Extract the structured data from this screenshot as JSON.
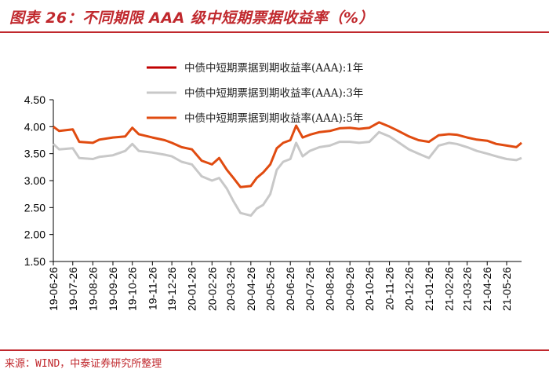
{
  "header": {
    "title": "图表 26：不同期限 AAA 级中短期票据收益率（%）"
  },
  "footer": {
    "source": "来源：WIND，中泰证券研究所整理"
  },
  "colors": {
    "accent": "#c0282d",
    "series_1y": "#c00000",
    "series_3y": "#c8c8c8",
    "series_5y": "#e04b10"
  },
  "chart_data": {
    "type": "line",
    "title": "",
    "xlabel": "",
    "ylabel": "",
    "ylim": [
      1.5,
      4.5
    ],
    "yticks": [
      "4.50",
      "4.00",
      "3.50",
      "3.00",
      "2.50",
      "2.00",
      "1.50"
    ],
    "x_start": "2019-06-26",
    "x_end": "2021-06-18",
    "xticks": [
      "19-06-26",
      "19-07-26",
      "19-08-26",
      "19-09-26",
      "19-10-26",
      "19-11-26",
      "19-12-26",
      "20-01-26",
      "20-02-26",
      "20-03-26",
      "20-04-26",
      "20-05-26",
      "20-06-26",
      "20-07-26",
      "20-08-26",
      "20-09-26",
      "20-10-26",
      "20-11-26",
      "20-12-26",
      "21-01-26",
      "21-02-26",
      "21-03-26",
      "21-04-26",
      "21-05-26"
    ],
    "legend_position": "top-center",
    "grid": false,
    "series": [
      {
        "name": "中债中短期票据到期收益率(AAA):1年",
        "key": "series_1y",
        "values": []
      },
      {
        "name": "中债中短期票据到期收益率(AAA):3年",
        "key": "series_3y",
        "points": [
          [
            "2019-06-26",
            3.68
          ],
          [
            "2019-07-05",
            3.58
          ],
          [
            "2019-07-26",
            3.6
          ],
          [
            "2019-08-05",
            3.42
          ],
          [
            "2019-08-26",
            3.4
          ],
          [
            "2019-09-05",
            3.44
          ],
          [
            "2019-09-26",
            3.47
          ],
          [
            "2019-10-15",
            3.55
          ],
          [
            "2019-10-26",
            3.68
          ],
          [
            "2019-11-05",
            3.55
          ],
          [
            "2019-11-26",
            3.52
          ],
          [
            "2019-12-15",
            3.48
          ],
          [
            "2019-12-26",
            3.45
          ],
          [
            "2020-01-10",
            3.35
          ],
          [
            "2020-01-26",
            3.3
          ],
          [
            "2020-02-10",
            3.08
          ],
          [
            "2020-02-26",
            3.0
          ],
          [
            "2020-03-08",
            3.05
          ],
          [
            "2020-03-20",
            2.85
          ],
          [
            "2020-03-30",
            2.62
          ],
          [
            "2020-04-10",
            2.4
          ],
          [
            "2020-04-26",
            2.35
          ],
          [
            "2020-05-05",
            2.48
          ],
          [
            "2020-05-15",
            2.55
          ],
          [
            "2020-05-26",
            2.75
          ],
          [
            "2020-06-05",
            3.2
          ],
          [
            "2020-06-15",
            3.35
          ],
          [
            "2020-06-26",
            3.4
          ],
          [
            "2020-07-05",
            3.7
          ],
          [
            "2020-07-15",
            3.45
          ],
          [
            "2020-07-26",
            3.55
          ],
          [
            "2020-08-10",
            3.62
          ],
          [
            "2020-08-26",
            3.65
          ],
          [
            "2020-09-10",
            3.72
          ],
          [
            "2020-09-26",
            3.72
          ],
          [
            "2020-10-10",
            3.7
          ],
          [
            "2020-10-26",
            3.72
          ],
          [
            "2020-11-10",
            3.9
          ],
          [
            "2020-11-26",
            3.82
          ],
          [
            "2020-12-05",
            3.75
          ],
          [
            "2020-12-26",
            3.58
          ],
          [
            "2021-01-10",
            3.5
          ],
          [
            "2021-01-26",
            3.42
          ],
          [
            "2021-02-10",
            3.65
          ],
          [
            "2021-02-26",
            3.7
          ],
          [
            "2021-03-10",
            3.68
          ],
          [
            "2021-03-26",
            3.62
          ],
          [
            "2021-04-10",
            3.55
          ],
          [
            "2021-04-26",
            3.5
          ],
          [
            "2021-05-10",
            3.45
          ],
          [
            "2021-05-26",
            3.4
          ],
          [
            "2021-06-10",
            3.38
          ],
          [
            "2021-06-18",
            3.42
          ]
        ]
      },
      {
        "name": "中债中短期票据到期收益率(AAA):5年",
        "key": "series_5y",
        "points": [
          [
            "2019-06-26",
            4.0
          ],
          [
            "2019-07-05",
            3.92
          ],
          [
            "2019-07-26",
            3.95
          ],
          [
            "2019-08-05",
            3.72
          ],
          [
            "2019-08-26",
            3.7
          ],
          [
            "2019-09-05",
            3.76
          ],
          [
            "2019-09-26",
            3.8
          ],
          [
            "2019-10-15",
            3.82
          ],
          [
            "2019-10-26",
            3.98
          ],
          [
            "2019-11-05",
            3.86
          ],
          [
            "2019-11-26",
            3.8
          ],
          [
            "2019-12-15",
            3.75
          ],
          [
            "2019-12-26",
            3.7
          ],
          [
            "2020-01-10",
            3.62
          ],
          [
            "2020-01-26",
            3.58
          ],
          [
            "2020-02-10",
            3.37
          ],
          [
            "2020-02-26",
            3.3
          ],
          [
            "2020-03-08",
            3.42
          ],
          [
            "2020-03-20",
            3.2
          ],
          [
            "2020-03-30",
            3.05
          ],
          [
            "2020-04-10",
            2.88
          ],
          [
            "2020-04-26",
            2.9
          ],
          [
            "2020-05-05",
            3.05
          ],
          [
            "2020-05-15",
            3.15
          ],
          [
            "2020-05-26",
            3.3
          ],
          [
            "2020-06-05",
            3.6
          ],
          [
            "2020-06-15",
            3.7
          ],
          [
            "2020-06-26",
            3.75
          ],
          [
            "2020-07-05",
            4.02
          ],
          [
            "2020-07-15",
            3.8
          ],
          [
            "2020-07-26",
            3.85
          ],
          [
            "2020-08-10",
            3.9
          ],
          [
            "2020-08-26",
            3.92
          ],
          [
            "2020-09-10",
            3.97
          ],
          [
            "2020-09-26",
            3.98
          ],
          [
            "2020-10-10",
            3.96
          ],
          [
            "2020-10-26",
            3.98
          ],
          [
            "2020-11-10",
            4.08
          ],
          [
            "2020-11-26",
            4.0
          ],
          [
            "2020-12-05",
            3.95
          ],
          [
            "2020-12-26",
            3.82
          ],
          [
            "2021-01-10",
            3.75
          ],
          [
            "2021-01-26",
            3.72
          ],
          [
            "2021-02-10",
            3.84
          ],
          [
            "2021-02-26",
            3.86
          ],
          [
            "2021-03-10",
            3.85
          ],
          [
            "2021-03-26",
            3.8
          ],
          [
            "2021-04-10",
            3.76
          ],
          [
            "2021-04-26",
            3.74
          ],
          [
            "2021-05-10",
            3.68
          ],
          [
            "2021-05-26",
            3.65
          ],
          [
            "2021-06-10",
            3.62
          ],
          [
            "2021-06-18",
            3.7
          ]
        ]
      }
    ]
  }
}
